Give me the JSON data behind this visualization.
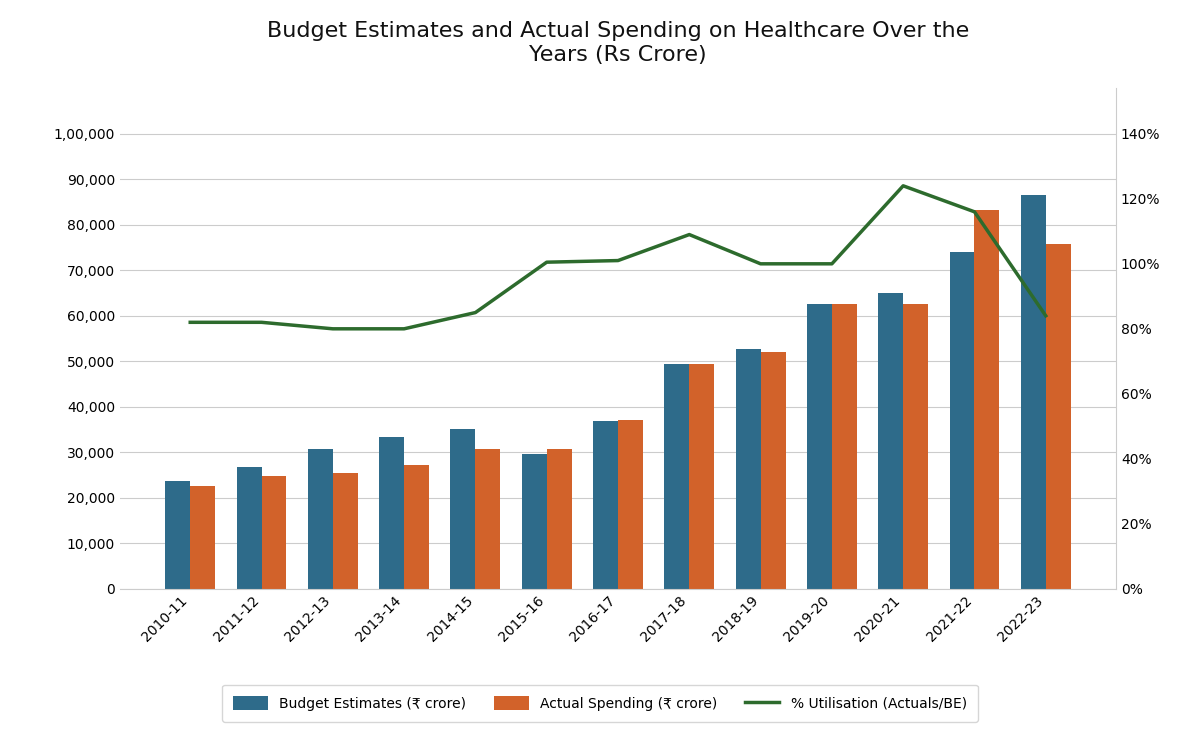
{
  "title": "Budget Estimates and Actual Spending on Healthcare Over the\nYears (Rs Crore)",
  "years": [
    "2010-11",
    "2011-12",
    "2012-13",
    "2013-14",
    "2014-15",
    "2015-16",
    "2016-17",
    "2017-18",
    "2018-19",
    "2019-20",
    "2020-21",
    "2021-22",
    "2022-23"
  ],
  "budget_estimates": [
    23600,
    26760,
    30700,
    33278,
    35163,
    29653,
    36776,
    49348,
    52802,
    62659,
    65011,
    73932,
    86606
  ],
  "actual_spending": [
    22627,
    24851,
    25510,
    27165,
    30747,
    30726,
    37130,
    49348,
    52060,
    62602,
    62502,
    83314,
    75746
  ],
  "utilisation_pct": [
    0.82,
    0.82,
    0.8,
    0.8,
    0.85,
    1.005,
    1.01,
    1.09,
    1.0,
    1.0,
    1.24,
    1.16,
    0.84
  ],
  "bar_color_budget": "#2E6B8A",
  "bar_color_actual": "#D2622A",
  "line_color": "#2D6B2D",
  "background_color": "#FFFFFF",
  "ylim_left": [
    0,
    110000
  ],
  "ylim_right": [
    0,
    1.54
  ],
  "yticks_left": [
    0,
    10000,
    20000,
    30000,
    40000,
    50000,
    60000,
    70000,
    80000,
    90000,
    100000
  ],
  "ytick_labels_left": [
    "0",
    "10,000",
    "20,000",
    "30,000",
    "40,000",
    "50,000",
    "60,000",
    "70,000",
    "80,000",
    "90,000",
    "1,00,000"
  ],
  "yticks_right": [
    0.0,
    0.2,
    0.4,
    0.6,
    0.8,
    1.0,
    1.2,
    1.4
  ],
  "ytick_labels_right": [
    "0%",
    "20%",
    "40%",
    "60%",
    "80%",
    "100%",
    "120%",
    "140%"
  ],
  "legend_budget": "Budget Estimates (₹ crore)",
  "legend_actual": "Actual Spending (₹ crore)",
  "legend_util": "% Utilisation (Actuals/BE)",
  "bar_width": 0.35,
  "title_fontsize": 16,
  "tick_fontsize": 10,
  "legend_fontsize": 10
}
